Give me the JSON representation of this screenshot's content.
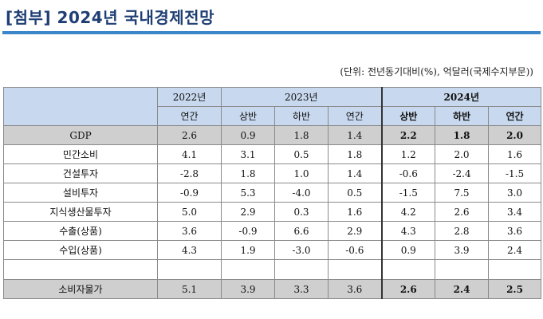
{
  "title": "[첨부] 2024년 국내경제전망",
  "unit_note": "(단위: 전년동기대비(%), 억달러(국제수지부문))",
  "header": {
    "years": [
      "2022년",
      "2023년",
      "2024년"
    ],
    "subs": [
      "연간",
      "상반",
      "하반",
      "연간",
      "상반",
      "하반",
      "연간"
    ]
  },
  "rows": [
    {
      "label": "GDP",
      "values": [
        "2.6",
        "0.9",
        "1.8",
        "1.4",
        "2.2",
        "1.8",
        "2.0"
      ]
    },
    {
      "label": "민간소비",
      "values": [
        "4.1",
        "3.1",
        "0.5",
        "1.8",
        "1.2",
        "2.0",
        "1.6"
      ]
    },
    {
      "label": "건설투자",
      "values": [
        "-2.8",
        "1.8",
        "1.0",
        "1.4",
        "-0.6",
        "-2.4",
        "-1.5"
      ]
    },
    {
      "label": "설비투자",
      "values": [
        "-0.9",
        "5.3",
        "-4.0",
        "0.5",
        "-1.5",
        "7.5",
        "3.0"
      ]
    },
    {
      "label": "지식생산물투자",
      "values": [
        "5.0",
        "2.9",
        "0.3",
        "1.6",
        "4.2",
        "2.6",
        "3.4"
      ]
    },
    {
      "label": "수출(상품)",
      "values": [
        "3.6",
        "-0.9",
        "6.6",
        "2.9",
        "4.3",
        "2.8",
        "3.6"
      ]
    },
    {
      "label": "수입(상품)",
      "values": [
        "4.3",
        "1.9",
        "-3.0",
        "-0.6",
        "0.9",
        "3.9",
        "2.4"
      ]
    },
    {
      "label": "",
      "values": [
        "",
        "",
        "",
        "",
        "",
        "",
        ""
      ]
    },
    {
      "label": "소비자물가",
      "values": [
        "5.1",
        "3.9",
        "3.3",
        "3.6",
        "2.6",
        "2.4",
        "2.5"
      ]
    }
  ]
}
